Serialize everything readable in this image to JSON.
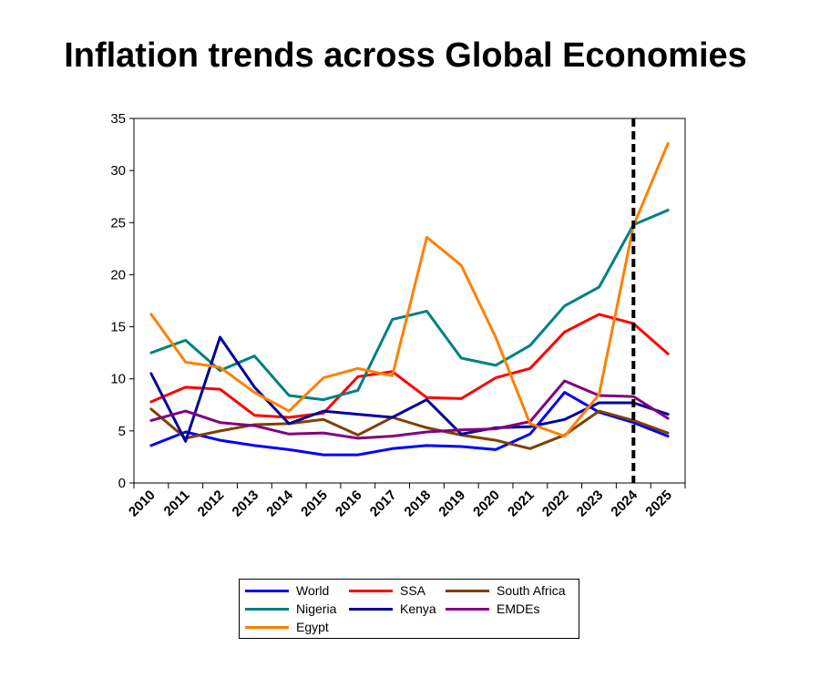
{
  "chart_data": {
    "type": "line",
    "title": "Inflation trends across Global Economies",
    "xlabel": "",
    "ylabel": "",
    "x": [
      "2010",
      "2011",
      "2012",
      "2013",
      "2014",
      "2015",
      "2016",
      "2017",
      "2018",
      "2019",
      "2020",
      "2021",
      "2022",
      "2023",
      "2024",
      "2025"
    ],
    "ylim": [
      0,
      35
    ],
    "yticks": [
      "0",
      "5",
      "10",
      "15",
      "20",
      "25",
      "30",
      "35"
    ],
    "grid": false,
    "legend_position": "bottom",
    "vertical_marker": {
      "x": "2024",
      "style": "dashed"
    },
    "series": [
      {
        "name": "World",
        "color": "#0000ff",
        "values": [
          3.6,
          4.9,
          4.1,
          3.6,
          3.2,
          2.7,
          2.7,
          3.3,
          3.6,
          3.5,
          3.2,
          4.7,
          8.7,
          6.8,
          5.8,
          4.5
        ]
      },
      {
        "name": "SSA",
        "color": "#ff0000",
        "values": [
          7.8,
          9.2,
          9.0,
          6.5,
          6.3,
          6.7,
          10.2,
          10.7,
          8.2,
          8.1,
          10.1,
          11.0,
          14.5,
          16.2,
          15.3,
          12.4
        ]
      },
      {
        "name": "South Africa",
        "color": "#804000",
        "values": [
          7.1,
          4.3,
          5.0,
          5.6,
          5.7,
          6.1,
          4.6,
          6.3,
          5.3,
          4.6,
          4.1,
          3.3,
          4.6,
          6.9,
          6.0,
          4.8
        ]
      },
      {
        "name": "Nigeria",
        "color": "#008080",
        "values": [
          12.5,
          13.7,
          10.8,
          12.2,
          8.4,
          8.0,
          8.9,
          15.7,
          16.5,
          12.0,
          11.3,
          13.2,
          17.0,
          18.8,
          24.8,
          26.2
        ]
      },
      {
        "name": "Kenya",
        "color": "#000099",
        "values": [
          10.5,
          4.0,
          14.0,
          9.2,
          5.7,
          6.9,
          6.6,
          6.3,
          8.0,
          4.7,
          5.3,
          5.4,
          6.1,
          7.7,
          7.7,
          6.6
        ]
      },
      {
        "name": "EMDEs",
        "color": "#800080",
        "values": [
          6.0,
          6.9,
          5.8,
          5.5,
          4.7,
          4.8,
          4.3,
          4.5,
          4.9,
          5.1,
          5.2,
          5.9,
          9.8,
          8.4,
          8.3,
          6.2
        ]
      },
      {
        "name": "Egypt",
        "color": "#ff8000",
        "values": [
          16.2,
          11.6,
          11.1,
          8.7,
          6.9,
          10.1,
          11.0,
          10.3,
          23.6,
          20.9,
          14.0,
          5.7,
          4.5,
          8.5,
          24.7,
          32.6
        ]
      }
    ]
  },
  "legend": {
    "items": [
      "World",
      "SSA",
      "South Africa",
      "Nigeria",
      "Kenya",
      "EMDEs",
      "Egypt"
    ]
  }
}
